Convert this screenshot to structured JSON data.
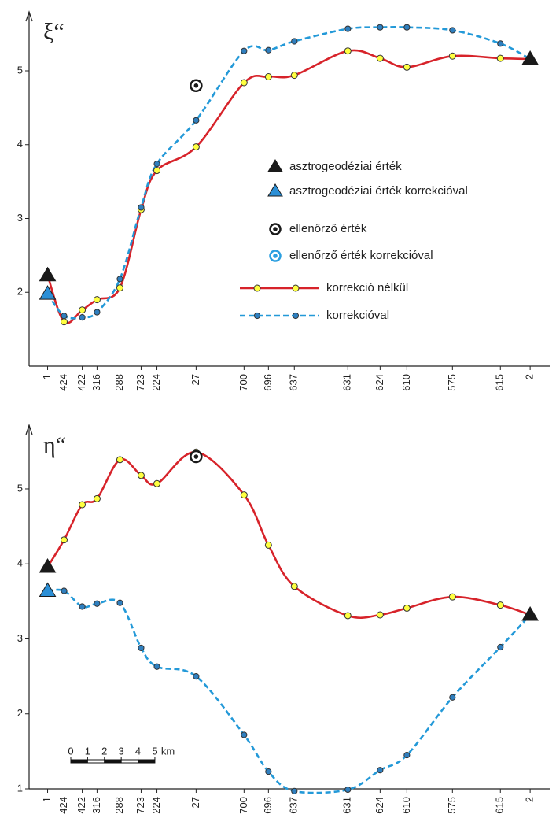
{
  "chart_data": [
    {
      "type": "line",
      "title": "ξ“",
      "x": [
        0,
        0.98,
        2.06,
        2.94,
        4.3,
        5.56,
        6.5,
        8.83,
        11.68,
        13.13,
        14.67,
        17.85,
        19.77,
        21.36,
        24.07,
        26.92,
        28.69
      ],
      "xlim": [
        -1.1,
        29.9
      ],
      "xticks": [
        {
          "value": 0,
          "label": "1"
        },
        {
          "value": 0.98,
          "label": "424"
        },
        {
          "value": 2.06,
          "label": "422"
        },
        {
          "value": 2.94,
          "label": "316"
        },
        {
          "value": 4.3,
          "label": "288"
        },
        {
          "value": 5.56,
          "label": "723"
        },
        {
          "value": 6.5,
          "label": "224"
        },
        {
          "value": 8.83,
          "label": "27"
        },
        {
          "value": 11.68,
          "label": "700"
        },
        {
          "value": 13.13,
          "label": "696"
        },
        {
          "value": 14.67,
          "label": "637"
        },
        {
          "value": 17.85,
          "label": "631"
        },
        {
          "value": 19.77,
          "label": "624"
        },
        {
          "value": 21.36,
          "label": "610"
        },
        {
          "value": 24.07,
          "label": "575"
        },
        {
          "value": 26.92,
          "label": "615"
        },
        {
          "value": 28.69,
          "label": "2"
        }
      ],
      "ylim": [
        1,
        5.8
      ],
      "yticks": [
        2,
        3,
        4,
        5
      ],
      "legend": true,
      "series": [
        {
          "name": "asztrogeodéziai érték",
          "color": "#1a1a1a",
          "marker": "triangle",
          "values": [
            2.23,
            null,
            null,
            null,
            null,
            null,
            null,
            null,
            null,
            null,
            null,
            null,
            null,
            null,
            null,
            null,
            5.16
          ]
        },
        {
          "name": "asztrogeodéziai érték korrekcióval",
          "color": "#2b8fd6",
          "marker": "triangle",
          "values": [
            1.98,
            null,
            null,
            null,
            null,
            null,
            null,
            null,
            null,
            null,
            null,
            null,
            null,
            null,
            null,
            null,
            null
          ]
        },
        {
          "name": "ellenőrző érték",
          "color": "#1a1a1a",
          "marker": "target",
          "values": [
            null,
            null,
            null,
            null,
            null,
            null,
            null,
            4.8,
            null,
            null,
            null,
            null,
            null,
            null,
            null,
            null,
            null
          ]
        },
        {
          "name": "ellenőrző érték korrekcióval",
          "color": "#2b9fe0",
          "marker": "ring",
          "values": [
            null,
            null,
            null,
            null,
            null,
            null,
            null,
            null,
            null,
            null,
            null,
            null,
            null,
            null,
            null,
            null,
            null
          ]
        },
        {
          "name": "korrekció nélkül",
          "color": "#d7232a",
          "line": "solid",
          "marker": "circle",
          "marker_color": "#ffff40",
          "values": [
            2.23,
            1.6,
            1.76,
            1.9,
            2.06,
            3.12,
            3.65,
            3.97,
            4.84,
            4.92,
            4.94,
            5.27,
            5.17,
            5.05,
            5.2,
            5.17,
            5.16
          ]
        },
        {
          "name": "korrekcióval",
          "color": "#2399d8",
          "line": "dashed",
          "marker": "circle",
          "marker_color": "#2f7fbf",
          "values": [
            1.98,
            1.68,
            1.66,
            1.73,
            2.18,
            3.15,
            3.74,
            4.33,
            5.27,
            5.28,
            5.4,
            5.57,
            5.59,
            5.59,
            5.55,
            5.37,
            5.16
          ]
        }
      ]
    },
    {
      "type": "line",
      "title": "η“",
      "x": [
        0,
        0.98,
        2.06,
        2.94,
        4.3,
        5.56,
        6.5,
        8.83,
        11.68,
        13.13,
        14.67,
        17.85,
        19.77,
        21.36,
        24.07,
        26.92,
        28.69
      ],
      "xlim": [
        -1.1,
        29.9
      ],
      "xticks": [
        {
          "value": 0,
          "label": "1"
        },
        {
          "value": 0.98,
          "label": "424"
        },
        {
          "value": 2.06,
          "label": "422"
        },
        {
          "value": 2.94,
          "label": "316"
        },
        {
          "value": 4.3,
          "label": "288"
        },
        {
          "value": 5.56,
          "label": "723"
        },
        {
          "value": 6.5,
          "label": "224"
        },
        {
          "value": 8.83,
          "label": "27"
        },
        {
          "value": 11.68,
          "label": "700"
        },
        {
          "value": 13.13,
          "label": "696"
        },
        {
          "value": 14.67,
          "label": "637"
        },
        {
          "value": 17.85,
          "label": "631"
        },
        {
          "value": 19.77,
          "label": "624"
        },
        {
          "value": 21.36,
          "label": "610"
        },
        {
          "value": 24.07,
          "label": "575"
        },
        {
          "value": 26.92,
          "label": "615"
        },
        {
          "value": 28.69,
          "label": "2"
        }
      ],
      "ylim": [
        1,
        5.85
      ],
      "yticks": [
        1,
        2,
        3,
        4,
        5
      ],
      "legend": false,
      "scale_bar": {
        "ticks": [
          0,
          1,
          2,
          3,
          4,
          5
        ],
        "unit": "km"
      },
      "series": [
        {
          "name": "asztrogeodéziai érték",
          "color": "#1a1a1a",
          "marker": "triangle",
          "values": [
            3.96,
            null,
            null,
            null,
            null,
            null,
            null,
            null,
            null,
            null,
            null,
            null,
            null,
            null,
            null,
            null,
            3.32
          ]
        },
        {
          "name": "asztrogeodéziai érték korrekcióval",
          "color": "#2b8fd6",
          "marker": "triangle",
          "values": [
            3.64,
            null,
            null,
            null,
            null,
            null,
            null,
            null,
            null,
            null,
            null,
            null,
            null,
            null,
            null,
            null,
            null
          ]
        },
        {
          "name": "ellenőrző érték",
          "color": "#1a1a1a",
          "marker": "target",
          "values": [
            null,
            null,
            null,
            null,
            null,
            null,
            null,
            5.43,
            null,
            null,
            null,
            null,
            null,
            null,
            null,
            null,
            null
          ]
        },
        {
          "name": "korrekció nélkül",
          "color": "#d7232a",
          "line": "solid",
          "marker": "circle",
          "marker_color": "#ffff40",
          "values": [
            3.96,
            4.32,
            4.79,
            4.87,
            5.39,
            5.18,
            5.07,
            5.49,
            4.92,
            4.25,
            3.7,
            3.31,
            3.32,
            3.41,
            3.56,
            3.45,
            3.32
          ]
        },
        {
          "name": "korrekcióval",
          "color": "#2399d8",
          "line": "dashed",
          "marker": "circle",
          "marker_color": "#2f7fbf",
          "values": [
            3.64,
            3.64,
            3.43,
            3.47,
            3.48,
            2.88,
            2.63,
            2.5,
            1.72,
            1.23,
            0.97,
            0.99,
            1.25,
            1.45,
            2.22,
            2.89,
            3.32
          ]
        }
      ]
    }
  ]
}
